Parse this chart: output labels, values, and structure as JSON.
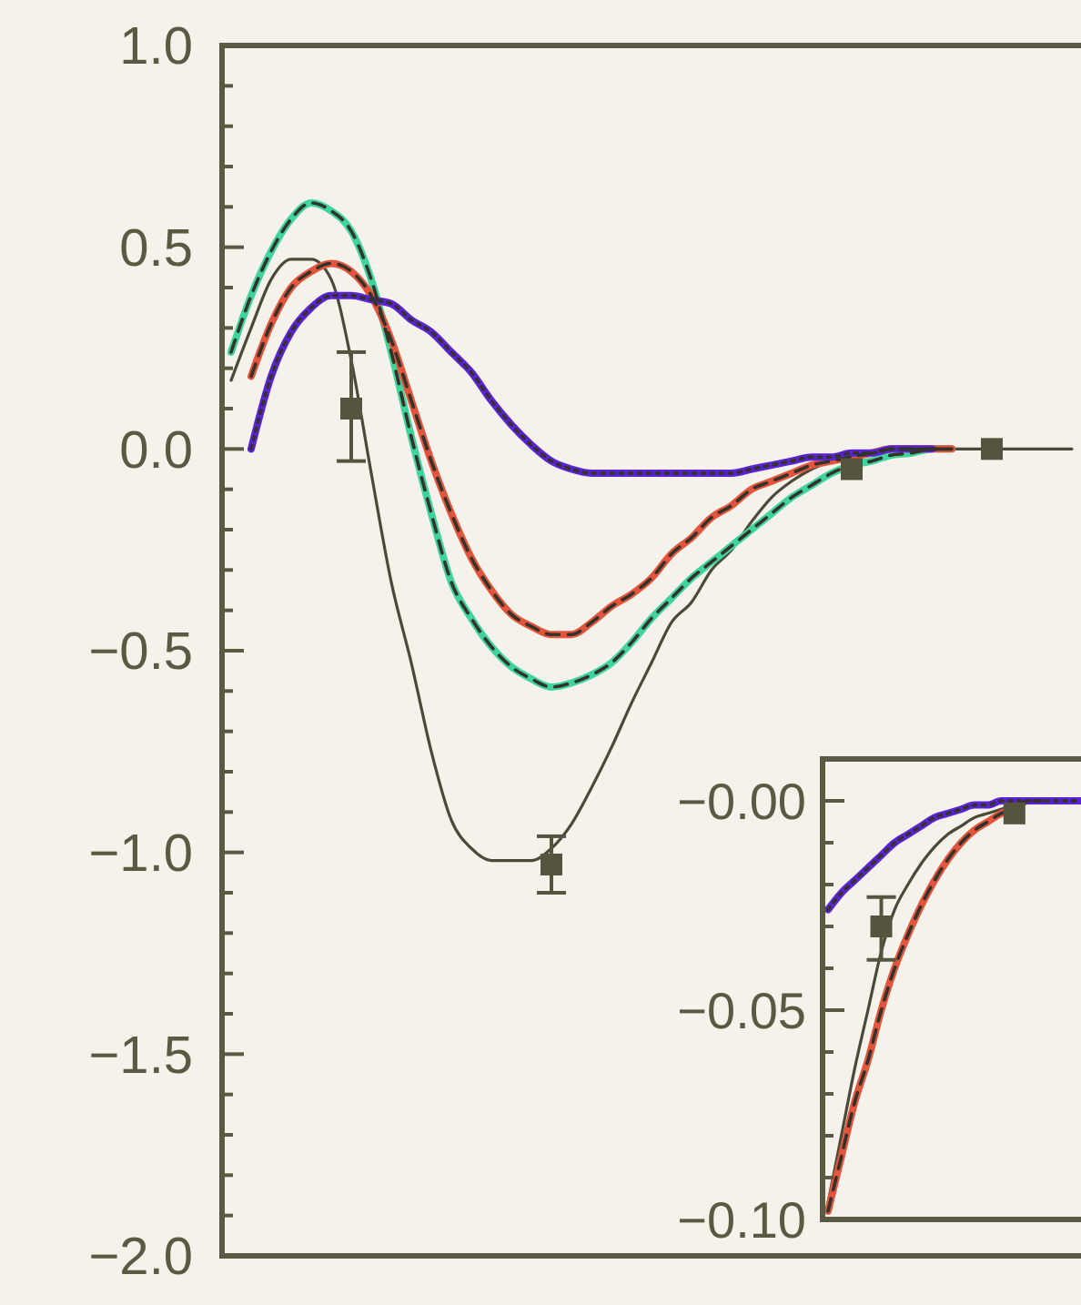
{
  "chart_data": [
    {
      "type": "line",
      "categories": [
        null,
        null,
        null,
        null,
        null,
        null,
        null,
        null,
        null,
        null,
        null,
        null,
        null,
        null,
        null,
        null,
        null,
        null,
        null,
        null,
        null,
        null,
        null,
        null,
        null,
        null,
        null,
        null,
        null,
        null,
        null,
        null,
        null,
        null,
        null,
        null,
        null,
        null,
        null,
        null,
        null,
        null,
        null
      ],
      "ylim": [
        -2,
        1
      ],
      "yticks": [
        {
          "value": -2,
          "label": "−2.0"
        },
        {
          "value": -1.5,
          "label": "−1.5"
        },
        {
          "value": -1,
          "label": "−1.0"
        },
        {
          "value": -0.5,
          "label": "−0.5"
        },
        {
          "value": 0,
          "label": "0.0"
        },
        {
          "value": 0.5,
          "label": "0.5"
        },
        {
          "value": 1,
          "label": "1.0"
        },
        {
          "value": -1.9,
          "label": null
        },
        {
          "value": -1.8,
          "label": null
        },
        {
          "value": -1.7,
          "label": null
        },
        {
          "value": -1.6,
          "label": null
        },
        {
          "value": -1.4,
          "label": null
        },
        {
          "value": -1.3,
          "label": null
        },
        {
          "value": -1.2,
          "label": null
        },
        {
          "value": -1.1,
          "label": null
        },
        {
          "value": -0.9,
          "label": null
        },
        {
          "value": -0.8,
          "label": null
        },
        {
          "value": -0.7,
          "label": null
        },
        {
          "value": -0.6,
          "label": null
        },
        {
          "value": -0.4,
          "label": null
        },
        {
          "value": -0.3,
          "label": null
        },
        {
          "value": -0.2,
          "label": null
        },
        {
          "value": -0.1,
          "label": null
        },
        {
          "value": 0.1,
          "label": null
        },
        {
          "value": 0.2,
          "label": null
        },
        {
          "value": 0.3,
          "label": null
        },
        {
          "value": 0.4,
          "label": null
        },
        {
          "value": 0.6,
          "label": null
        },
        {
          "value": 0.7,
          "label": null
        },
        {
          "value": 0.8,
          "label": null
        },
        {
          "value": 0.9,
          "label": null
        }
      ],
      "tick_labels": "y",
      "grid": false,
      "series": [
        {
          "color": "#4a4a38",
          "line_style": "solid",
          "values": [
            0.17,
            0.3,
            0.42,
            0.47,
            0.47,
            0.42,
            0.22,
            -0.06,
            -0.33,
            -0.53,
            -0.75,
            -0.92,
            -0.99,
            -1.02,
            -1.02,
            -1.02,
            -0.99,
            -0.93,
            -0.84,
            -0.74,
            -0.63,
            -0.53,
            -0.43,
            -0.38,
            -0.3,
            -0.25,
            -0.18,
            -0.12,
            -0.08,
            -0.05,
            -0.03,
            -0.02,
            -0.01,
            0,
            0,
            0,
            0,
            0,
            0,
            0,
            0,
            0,
            0
          ]
        },
        {
          "color": "#3fd49c",
          "line_style": "solid",
          "values": [
            0.24,
            0.38,
            0.49,
            0.57,
            0.61,
            0.59,
            0.54,
            0.42,
            0.24,
            0.03,
            -0.16,
            -0.33,
            -0.42,
            -0.49,
            -0.54,
            -0.57,
            -0.59,
            -0.58,
            -0.56,
            -0.53,
            -0.48,
            -0.42,
            -0.37,
            -0.32,
            -0.28,
            -0.24,
            -0.2,
            -0.16,
            -0.12,
            -0.09,
            -0.06,
            -0.04,
            -0.03,
            -0.015,
            -0.01,
            0,
            0,
            null,
            null,
            null,
            null,
            null,
            null
          ]
        },
        {
          "color": "#e2553c",
          "line_style": "solid",
          "values": [
            null,
            0.18,
            0.31,
            0.4,
            0.44,
            0.46,
            0.44,
            0.38,
            0.27,
            0.12,
            -0.03,
            -0.16,
            -0.27,
            -0.35,
            -0.41,
            -0.44,
            -0.46,
            -0.46,
            -0.43,
            -0.39,
            -0.36,
            -0.32,
            -0.26,
            -0.22,
            -0.17,
            -0.14,
            -0.1,
            -0.08,
            -0.06,
            -0.04,
            -0.03,
            -0.02,
            -0.01,
            0,
            0,
            0,
            0,
            null,
            null,
            null,
            null,
            null,
            null
          ]
        },
        {
          "color": "#5b22d8",
          "line_style": "solid",
          "values": [
            null,
            0.0,
            0.18,
            0.29,
            0.35,
            0.38,
            0.38,
            0.37,
            0.36,
            0.32,
            0.29,
            0.24,
            0.19,
            0.12,
            0.06,
            0.01,
            -0.03,
            -0.05,
            -0.06,
            -0.06,
            -0.06,
            -0.06,
            -0.06,
            -0.06,
            -0.06,
            -0.06,
            -0.05,
            -0.04,
            -0.03,
            -0.02,
            -0.02,
            -0.01,
            -0.01,
            0,
            0,
            0,
            null,
            null,
            null,
            null,
            null,
            null,
            null
          ]
        },
        {
          "color": "#33332a",
          "line_style": "dashed",
          "values": [
            0.24,
            0.38,
            0.49,
            0.57,
            0.61,
            0.59,
            0.54,
            0.42,
            0.24,
            0.03,
            -0.16,
            -0.33,
            -0.42,
            -0.49,
            -0.54,
            -0.57,
            -0.59,
            -0.58,
            -0.56,
            -0.53,
            -0.48,
            -0.42,
            -0.37,
            -0.32,
            -0.28,
            -0.24,
            -0.2,
            -0.16,
            -0.12,
            -0.09,
            -0.06,
            -0.04,
            -0.03,
            -0.015,
            -0.01,
            0,
            0,
            null,
            null,
            null,
            null,
            null,
            null
          ]
        },
        {
          "color": "#33332a",
          "line_style": "dashed",
          "values": [
            null,
            0.18,
            0.31,
            0.4,
            0.44,
            0.46,
            0.44,
            0.38,
            0.27,
            0.12,
            -0.03,
            -0.16,
            -0.27,
            -0.35,
            -0.41,
            -0.44,
            -0.46,
            -0.46,
            -0.43,
            -0.39,
            -0.36,
            -0.32,
            -0.26,
            -0.22,
            -0.17,
            -0.14,
            -0.1,
            -0.08,
            -0.06,
            -0.04,
            -0.03,
            -0.02,
            -0.01,
            0,
            0,
            0,
            0,
            null,
            null,
            null,
            null,
            null,
            null
          ]
        },
        {
          "color": "#33332a",
          "line_style": "dotted",
          "values": [
            null,
            0.0,
            0.18,
            0.29,
            0.35,
            0.38,
            0.38,
            0.37,
            0.36,
            0.32,
            0.29,
            0.24,
            0.19,
            0.12,
            0.06,
            0.01,
            -0.03,
            -0.05,
            -0.06,
            -0.06,
            -0.06,
            -0.06,
            -0.06,
            -0.06,
            -0.06,
            -0.06,
            -0.05,
            -0.04,
            -0.03,
            -0.02,
            -0.02,
            -0.01,
            -0.01,
            0,
            0,
            0,
            null,
            null,
            null,
            null,
            null,
            null,
            null
          ]
        },
        {
          "type": "scatter",
          "marker": "square",
          "color": "#55553f",
          "values": [
            null,
            null,
            null,
            null,
            null,
            null,
            0.1,
            null,
            null,
            null,
            null,
            null,
            null,
            null,
            null,
            null,
            -1.03,
            null,
            null,
            null,
            null,
            null,
            null,
            null,
            null,
            null,
            null,
            null,
            null,
            null,
            null,
            -0.05,
            null,
            null,
            null,
            null,
            null,
            null,
            0.0,
            null,
            null,
            null,
            null
          ],
          "errors": [
            null,
            null,
            null,
            null,
            null,
            null,
            [
              -0.03,
              0.24
            ],
            null,
            null,
            null,
            null,
            null,
            null,
            null,
            null,
            null,
            [
              -1.1,
              -0.96
            ],
            null,
            null,
            null,
            null,
            null,
            null,
            null,
            null,
            null,
            null,
            null,
            null,
            null,
            null,
            null,
            null,
            null,
            null,
            null,
            null,
            null,
            null,
            null,
            null,
            null,
            null
          ]
        }
      ]
    },
    {
      "type": "line",
      "categories": [
        null,
        null,
        null,
        null,
        null,
        null,
        null,
        null,
        null,
        null,
        null,
        null,
        null,
        null,
        null,
        null,
        null,
        null,
        null,
        null
      ],
      "ylim": [
        -0.1,
        0.01
      ],
      "yticks": [
        {
          "value": -0.1,
          "label": "−0.10"
        },
        {
          "value": -0.05,
          "label": "−0.05"
        },
        {
          "value": 0,
          "label": "−0.00"
        },
        {
          "value": -0.09,
          "label": null
        },
        {
          "value": -0.08,
          "label": null
        },
        {
          "value": -0.07,
          "label": null
        },
        {
          "value": -0.06,
          "label": null
        },
        {
          "value": -0.04,
          "label": null
        },
        {
          "value": -0.03,
          "label": null
        },
        {
          "value": -0.02,
          "label": null
        },
        {
          "value": -0.01,
          "label": null
        },
        {
          "value": 0.01,
          "label": null
        }
      ],
      "tick_labels": "y",
      "grid": false,
      "series": [
        {
          "color": "#4a4a38",
          "line_style": "solid",
          "values": [
            -0.096,
            -0.08,
            -0.064,
            -0.05,
            -0.036,
            -0.026,
            -0.02,
            -0.015,
            -0.011,
            -0.008,
            -0.006,
            -0.004,
            -0.003,
            -0.002,
            -0.001,
            0,
            0,
            0,
            0,
            0
          ]
        },
        {
          "color": "#e2553c",
          "line_style": "solid",
          "values": [
            -0.098,
            -0.085,
            -0.072,
            -0.062,
            -0.05,
            -0.04,
            -0.032,
            -0.025,
            -0.019,
            -0.014,
            -0.01,
            -0.007,
            -0.005,
            -0.003,
            -0.002,
            0,
            0,
            null,
            null,
            null
          ]
        },
        {
          "color": "#5b22d8",
          "line_style": "solid",
          "values": [
            -0.026,
            -0.022,
            -0.019,
            -0.016,
            -0.013,
            -0.01,
            -0.008,
            -0.006,
            -0.004,
            -0.003,
            -0.002,
            -0.001,
            -0.001,
            0,
            0,
            0,
            0,
            0,
            0,
            0
          ]
        },
        {
          "color": "#33332a",
          "line_style": "dashed",
          "values": [
            -0.098,
            -0.085,
            -0.072,
            -0.062,
            -0.05,
            -0.04,
            -0.032,
            -0.025,
            -0.019,
            -0.014,
            -0.01,
            -0.007,
            -0.005,
            -0.003,
            -0.002,
            0,
            0,
            null,
            null,
            null
          ]
        },
        {
          "color": "#33332a",
          "line_style": "dotted",
          "values": [
            -0.026,
            -0.022,
            -0.019,
            -0.016,
            -0.013,
            -0.01,
            -0.008,
            -0.006,
            -0.004,
            -0.003,
            -0.002,
            -0.001,
            -0.001,
            0,
            0,
            0,
            0,
            0,
            0,
            0
          ]
        },
        {
          "type": "scatter",
          "marker": "square",
          "color": "#55553f",
          "values": [
            null,
            null,
            null,
            null,
            -0.03,
            null,
            null,
            null,
            null,
            null,
            null,
            null,
            null,
            null,
            -0.003,
            null,
            null,
            null,
            null,
            null
          ],
          "errors": [
            null,
            null,
            null,
            null,
            [
              -0.038,
              -0.023
            ],
            null,
            null,
            null,
            null,
            null,
            null,
            null,
            null,
            null,
            null,
            null,
            null,
            null,
            null,
            null
          ]
        }
      ]
    }
  ]
}
